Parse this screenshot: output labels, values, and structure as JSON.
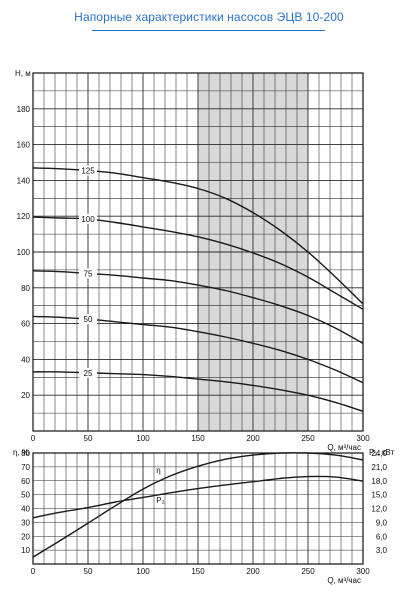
{
  "title": "Напорные характеристики насосов ЭЦВ 10-200",
  "colors": {
    "title": "#2a72c9",
    "grid": "#2b2b2b",
    "curve": "#1a1a1a",
    "shade": "#d8d8d8"
  },
  "chart_data": [
    {
      "type": "line",
      "title": "Напорные характеристики насосов ЭЦВ 10-200",
      "xlabel": "Q, м³/час",
      "ylabel": "H, м",
      "xlim": [
        0,
        300
      ],
      "ylim": [
        0,
        200
      ],
      "x_ticks": [
        "0",
        "50",
        "100",
        "150",
        "200",
        "250",
        "300"
      ],
      "y_ticks": [
        "20",
        "40",
        "60",
        "80",
        "100",
        "120",
        "140",
        "160",
        "180"
      ],
      "grid": true,
      "shaded_region": {
        "x_from": 150,
        "x_to": 250
      },
      "series": [
        {
          "name": "125",
          "x": [
            0,
            25,
            50,
            75,
            100,
            125,
            150,
            175,
            200,
            225,
            250,
            275,
            300
          ],
          "values": [
            147,
            146.5,
            145.5,
            144,
            141.5,
            139,
            135.5,
            130,
            122,
            112,
            100,
            86,
            71
          ]
        },
        {
          "name": "100",
          "x": [
            0,
            25,
            50,
            75,
            100,
            125,
            150,
            175,
            200,
            225,
            250,
            275,
            300
          ],
          "values": [
            119.5,
            119,
            118.5,
            116.5,
            114,
            111.5,
            108.5,
            104.5,
            99.5,
            93.5,
            86,
            77,
            68
          ]
        },
        {
          "name": "75",
          "x": [
            0,
            25,
            50,
            75,
            100,
            125,
            150,
            175,
            200,
            225,
            250,
            275,
            300
          ],
          "values": [
            89.5,
            89,
            88,
            87,
            85.5,
            84,
            81.5,
            78.5,
            74.5,
            70,
            64.5,
            57.5,
            49
          ]
        },
        {
          "name": "50",
          "x": [
            0,
            25,
            50,
            75,
            100,
            125,
            150,
            175,
            200,
            225,
            250,
            275,
            300
          ],
          "values": [
            64,
            63.5,
            62.5,
            61,
            59.5,
            58,
            55.5,
            52.5,
            49,
            45,
            40,
            34,
            27
          ]
        },
        {
          "name": "25",
          "x": [
            0,
            25,
            50,
            75,
            100,
            125,
            150,
            175,
            200,
            225,
            250,
            275,
            300
          ],
          "values": [
            33,
            33,
            32.5,
            32,
            31.5,
            30.5,
            29,
            27.5,
            25.5,
            23,
            20,
            16,
            11
          ]
        }
      ]
    },
    {
      "type": "line",
      "xlabel": "Q, м³/час",
      "ylabel": "η, %",
      "y2label": "P₂, кВт",
      "xlim": [
        0,
        300
      ],
      "ylim": [
        0,
        80
      ],
      "y2lim": [
        0,
        24
      ],
      "x_ticks": [
        "0",
        "50",
        "100",
        "150",
        "200",
        "250",
        "300"
      ],
      "y_ticks": [
        "10",
        "20",
        "30",
        "40",
        "50",
        "60",
        "70",
        "80"
      ],
      "y2_ticks": [
        "3,0",
        "6,0",
        "9,0",
        "12,0",
        "15,0",
        "18,0",
        "21,0",
        "24,0"
      ],
      "grid": true,
      "series": [
        {
          "name": "η",
          "axis": "left",
          "x": [
            0,
            25,
            50,
            75,
            100,
            125,
            150,
            175,
            200,
            225,
            250,
            275,
            300
          ],
          "values": [
            5,
            17,
            29.5,
            42,
            54,
            63.5,
            70.5,
            75.5,
            78.5,
            80,
            80,
            78.5,
            75
          ]
        },
        {
          "name": "P₂",
          "axis": "right",
          "x": [
            0,
            25,
            50,
            75,
            100,
            125,
            150,
            175,
            200,
            225,
            250,
            275,
            300
          ],
          "values": [
            10.0,
            11.2,
            12.2,
            13.4,
            14.4,
            15.4,
            16.3,
            17.1,
            17.8,
            18.5,
            18.9,
            18.8,
            17.9
          ]
        }
      ]
    }
  ]
}
